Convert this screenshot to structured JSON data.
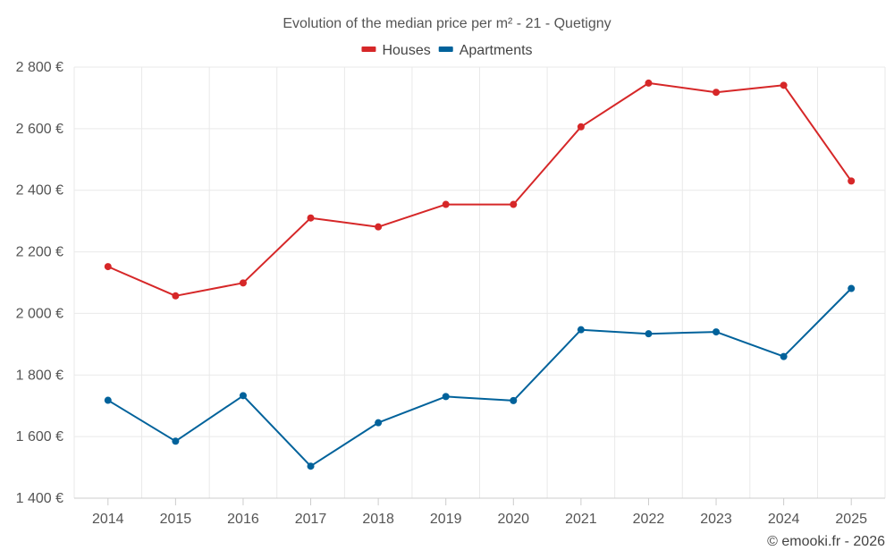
{
  "chart_data": {
    "type": "line",
    "title": "Evolution of the median price per m² - 21 - Quetigny",
    "categories": [
      "2014",
      "2015",
      "2016",
      "2017",
      "2018",
      "2019",
      "2020",
      "2021",
      "2022",
      "2023",
      "2024",
      "2025"
    ],
    "series": [
      {
        "name": "Houses",
        "color": "#d62728",
        "values": [
          2152,
          2057,
          2099,
          2310,
          2281,
          2354,
          2354,
          2606,
          2748,
          2718,
          2741,
          2430
        ]
      },
      {
        "name": "Apartments",
        "color": "#00629b",
        "values": [
          1718,
          1585,
          1733,
          1504,
          1645,
          1730,
          1717,
          1947,
          1934,
          1940,
          1860,
          2081
        ]
      }
    ],
    "ylim": [
      1400,
      2800
    ],
    "yticks": [
      1400,
      1600,
      1800,
      2000,
      2200,
      2400,
      2600,
      2800
    ],
    "ytick_labels": [
      "1 400 €",
      "1 600 €",
      "1 800 €",
      "2 000 €",
      "2 200 €",
      "2 400 €",
      "2 600 €",
      "2 800 €"
    ],
    "xlabel": "",
    "ylabel": "",
    "grid": true,
    "legend_position": "top-center"
  },
  "credit": "© emooki.fr - 2026"
}
